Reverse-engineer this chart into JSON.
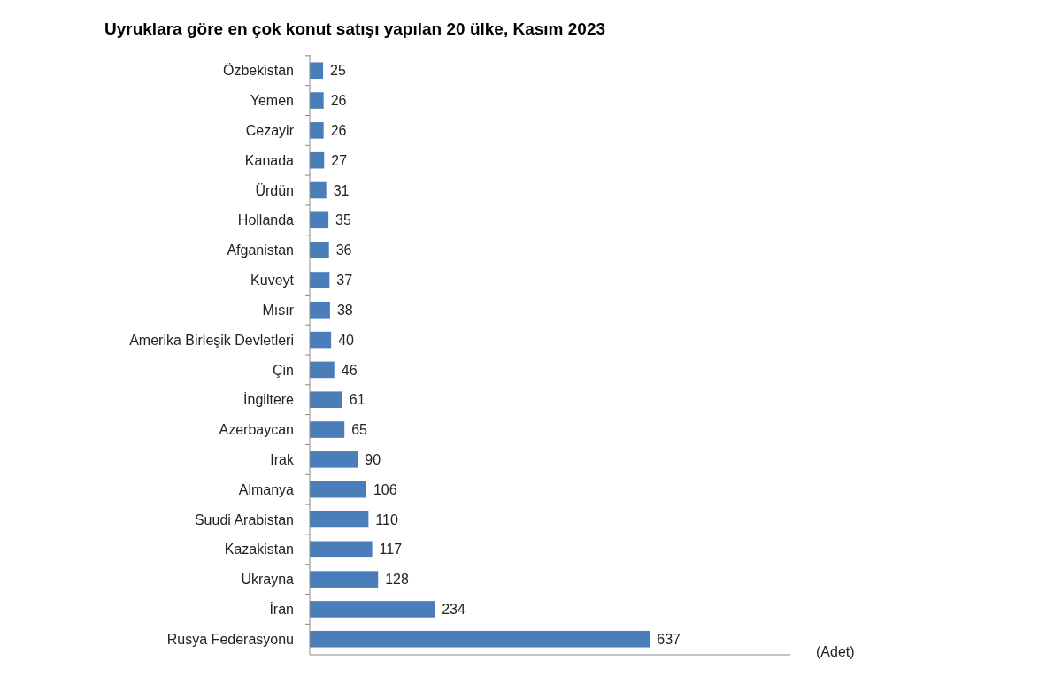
{
  "chart_data": {
    "type": "bar",
    "orientation": "horizontal",
    "title": "Uyruklara göre en çok konut satışı yapılan 20 ülke, Kasım 2023",
    "xlabel": "(Adet)",
    "categories": [
      "Özbekistan",
      "Yemen",
      "Cezayir",
      "Kanada",
      "Ürdün",
      "Hollanda",
      "Afganistan",
      "Kuveyt",
      "Mısır",
      "Amerika Birleşik Devletleri",
      "Çin",
      "İngiltere",
      "Azerbaycan",
      "Irak",
      "Almanya",
      "Suudi Arabistan",
      "Kazakistan",
      "Ukrayna",
      "İran",
      "Rusya Federasyonu"
    ],
    "values": [
      25,
      26,
      26,
      27,
      31,
      35,
      36,
      37,
      38,
      40,
      46,
      61,
      65,
      90,
      106,
      110,
      117,
      128,
      234,
      637
    ],
    "color": "#4a7ebb",
    "xlim": [
      0,
      900
    ],
    "data_labels": true,
    "tick_labels": "y"
  }
}
